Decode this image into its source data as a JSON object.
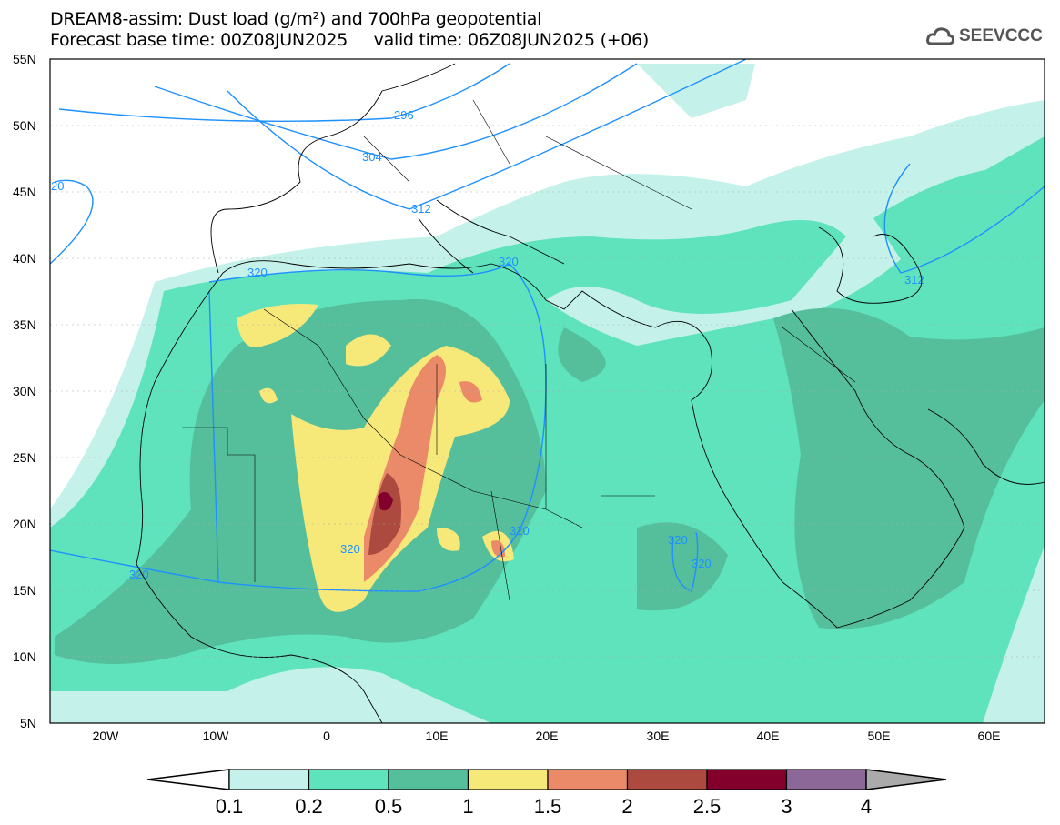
{
  "title": {
    "line1": "DREAM8-assim: Dust load (g/m²) and 700hPa geopotential",
    "line2": "Forecast base time: 00Z08JUN2025     valid time: 06Z08JUN2025 (+06)"
  },
  "logo": {
    "text": "SEEVCCC",
    "icon": "cloud-icon"
  },
  "map": {
    "lat_labels": [
      "55N",
      "50N",
      "45N",
      "40N",
      "35N",
      "30N",
      "25N",
      "20N",
      "15N",
      "10N",
      "5N"
    ],
    "lon_labels": [
      "20W",
      "10W",
      "0",
      "10E",
      "20E",
      "30E",
      "40E",
      "50E",
      "60E"
    ],
    "contour_labels": [
      "296",
      "304",
      "312",
      "320",
      "320",
      "320",
      "320",
      "320",
      "320",
      "320",
      "312",
      "20"
    ]
  },
  "legend": {
    "levels": [
      "0.1",
      "0.2",
      "0.5",
      "1",
      "1.5",
      "2",
      "2.5",
      "3",
      "4"
    ],
    "colors": [
      "#ffffff",
      "#c4f2ea",
      "#5ee3bc",
      "#55bf9c",
      "#f7e87a",
      "#eb8a68",
      "#ac4a40",
      "#83002d",
      "#8b6898",
      "#aaaaaa"
    ]
  }
}
